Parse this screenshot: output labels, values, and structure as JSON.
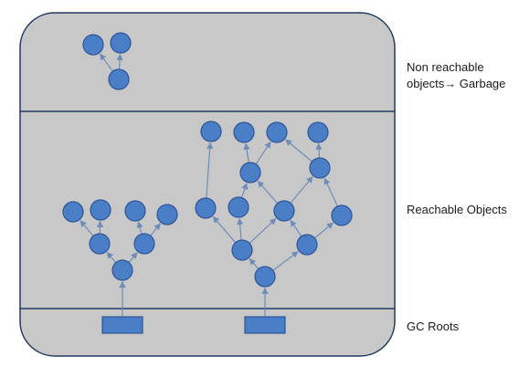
{
  "labels": {
    "garbage_line1": "Non reachable",
    "garbage_line2": "objects→ Garbage",
    "reachable": "Reachable Objects",
    "roots": "GC Roots"
  },
  "colors": {
    "panel_fill": "#c8c8c8",
    "border": "#1f3b63",
    "node_fill": "#4a7ec6",
    "node_stroke": "#2f5597",
    "edge": "#6d8cb8"
  }
}
